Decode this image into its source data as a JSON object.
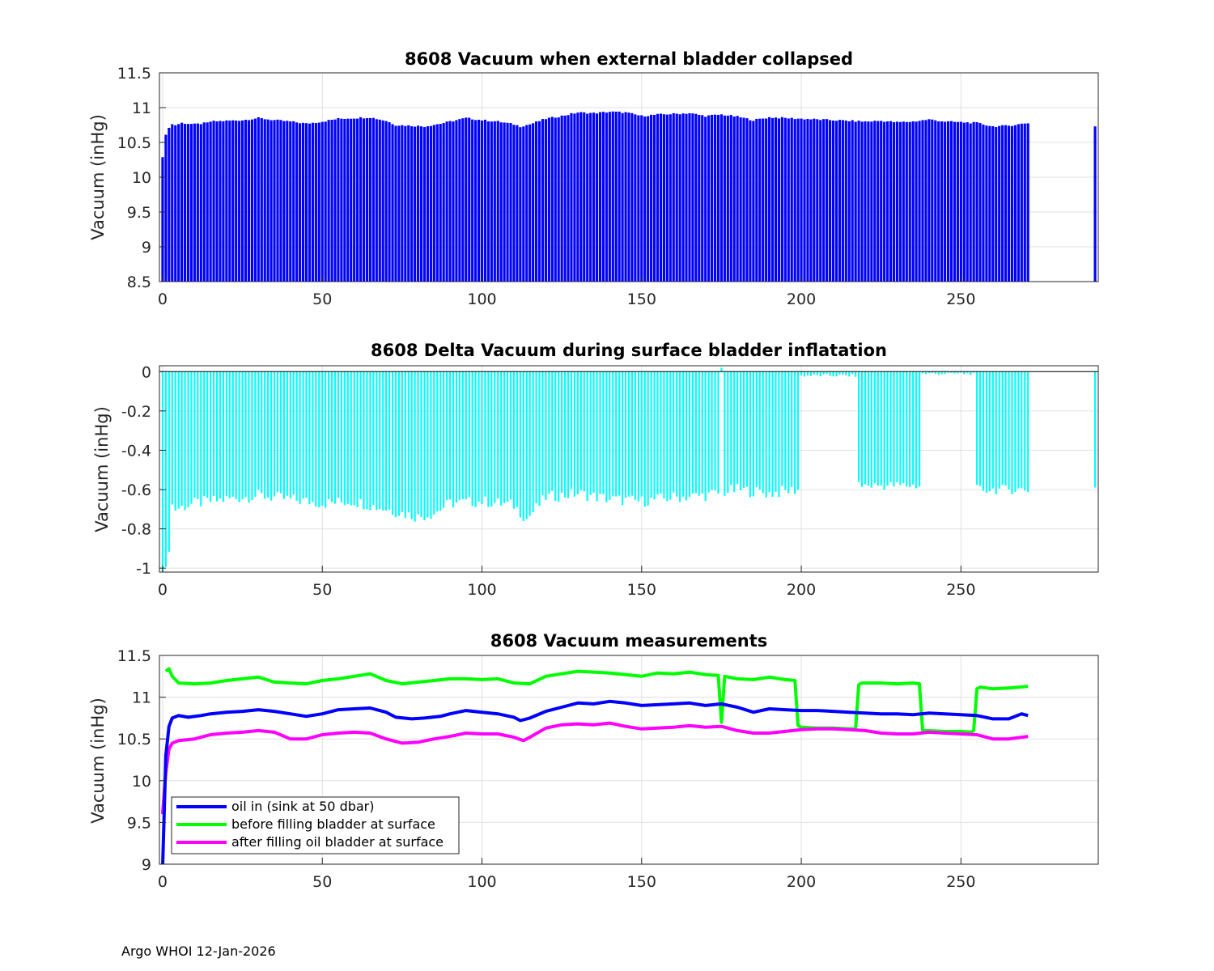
{
  "footer": "Argo WHOI 12-Jan-2026",
  "chart_data": [
    {
      "type": "bar",
      "title": "8608 Vacuum when external bladder collapsed",
      "ylabel": "Vacuum (inHg)",
      "xlabel": "",
      "xlim": [
        -1,
        293
      ],
      "ylim": [
        8.5,
        11.5
      ],
      "xticks": [
        0,
        50,
        100,
        150,
        200,
        250
      ],
      "yticks": [
        8.5,
        9,
        9.5,
        10,
        10.5,
        11,
        11.5
      ],
      "ytick_labels": [
        "8.5",
        "9",
        "9.5",
        "10",
        "10.5",
        "11",
        "11.5"
      ],
      "grid": true,
      "color": "#0000ff",
      "x_range": [
        0,
        271
      ],
      "extra_points": [
        {
          "x": 292,
          "y": 10.73
        }
      ],
      "anchors": {
        "x": [
          0,
          1,
          2,
          3,
          4,
          6,
          10,
          14,
          15,
          20,
          25,
          30,
          35,
          40,
          45,
          50,
          55,
          60,
          65,
          70,
          73,
          78,
          82,
          87,
          90,
          95,
          100,
          105,
          110,
          112,
          115,
          120,
          125,
          130,
          135,
          140,
          145,
          150,
          155,
          160,
          165,
          170,
          175,
          180,
          185,
          190,
          195,
          200,
          205,
          210,
          215,
          220,
          225,
          230,
          235,
          240,
          245,
          250,
          255,
          260,
          265,
          271
        ],
        "y": [
          10.3,
          10.6,
          10.72,
          10.76,
          10.75,
          10.78,
          10.76,
          10.78,
          10.8,
          10.81,
          10.82,
          10.85,
          10.82,
          10.8,
          10.77,
          10.8,
          10.84,
          10.85,
          10.86,
          10.81,
          10.75,
          10.74,
          10.73,
          10.77,
          10.8,
          10.85,
          10.82,
          10.8,
          10.76,
          10.73,
          10.76,
          10.84,
          10.88,
          10.93,
          10.92,
          10.94,
          10.93,
          10.88,
          10.9,
          10.91,
          10.92,
          10.88,
          10.9,
          10.87,
          10.82,
          10.86,
          10.85,
          10.84,
          10.83,
          10.82,
          10.81,
          10.8,
          10.81,
          10.79,
          10.8,
          10.83,
          10.8,
          10.79,
          10.78,
          10.73,
          10.74,
          10.78
        ]
      }
    },
    {
      "type": "bar",
      "title": "8608 Delta Vacuum during surface bladder inflatation",
      "ylabel": "Vacuum (inHg)",
      "xlabel": "",
      "xlim": [
        -1,
        293
      ],
      "ylim": [
        -1.02,
        0.03
      ],
      "xticks": [
        0,
        50,
        100,
        150,
        200,
        250
      ],
      "yticks": [
        -1,
        -0.8,
        -0.6,
        -0.4,
        -0.2,
        0
      ],
      "ytick_labels": [
        "-1",
        "-0.8",
        "-0.6",
        "-0.4",
        "-0.2",
        "0"
      ],
      "grid": true,
      "color": "#00ffff",
      "x_range": [
        0,
        271
      ],
      "segments": [
        {
          "from": 0,
          "to": 199,
          "level": -0.66
        },
        {
          "from": 200,
          "to": 217,
          "level": -0.02
        },
        {
          "from": 218,
          "to": 237,
          "level": -0.58
        },
        {
          "from": 238,
          "to": 254,
          "level": -0.01
        },
        {
          "from": 255,
          "to": 271,
          "level": -0.6
        }
      ],
      "anchors": {
        "x": [
          0,
          1,
          2,
          3,
          4,
          10,
          20,
          30,
          40,
          50,
          60,
          70,
          80,
          85,
          90,
          100,
          110,
          114,
          120,
          130,
          140,
          150,
          160,
          170,
          174,
          180,
          190,
          199
        ],
        "y": [
          -1.02,
          -1.02,
          -0.89,
          -0.68,
          -0.7,
          -0.67,
          -0.65,
          -0.63,
          -0.65,
          -0.67,
          -0.66,
          -0.7,
          -0.74,
          -0.72,
          -0.67,
          -0.66,
          -0.68,
          -0.75,
          -0.64,
          -0.62,
          -0.65,
          -0.66,
          -0.64,
          -0.63,
          -0.62,
          -0.6,
          -0.62,
          -0.6
        ]
      }
    },
    {
      "type": "line",
      "title": "8608 Vacuum measurements",
      "ylabel": "Vacuum (inHg)",
      "xlabel": "",
      "xlim": [
        -1,
        293
      ],
      "ylim": [
        9,
        11.5
      ],
      "xticks": [
        0,
        50,
        100,
        150,
        200,
        250
      ],
      "yticks": [
        9,
        9.5,
        10,
        10.5,
        11,
        11.5
      ],
      "ytick_labels": [
        "9",
        "9.5",
        "10",
        "10.5",
        "11",
        "11.5"
      ],
      "grid": true,
      "legend_position": "lower-left",
      "series": [
        {
          "name": "oil in (sink at 50 dbar)",
          "color": "#0000ff",
          "x": [
            0,
            1,
            2,
            3,
            5,
            8,
            12,
            15,
            20,
            25,
            30,
            35,
            40,
            45,
            50,
            55,
            60,
            65,
            70,
            73,
            78,
            82,
            87,
            90,
            95,
            100,
            105,
            110,
            112,
            115,
            120,
            125,
            130,
            135,
            140,
            145,
            150,
            155,
            160,
            165,
            170,
            175,
            180,
            185,
            190,
            195,
            200,
            205,
            210,
            215,
            220,
            225,
            230,
            235,
            240,
            245,
            250,
            255,
            260,
            265,
            269,
            271
          ],
          "y": [
            8.95,
            10.3,
            10.65,
            10.75,
            10.78,
            10.76,
            10.78,
            10.8,
            10.82,
            10.83,
            10.85,
            10.83,
            10.8,
            10.77,
            10.8,
            10.85,
            10.86,
            10.87,
            10.82,
            10.76,
            10.74,
            10.75,
            10.77,
            10.8,
            10.84,
            10.82,
            10.8,
            10.76,
            10.72,
            10.75,
            10.83,
            10.88,
            10.93,
            10.92,
            10.95,
            10.93,
            10.9,
            10.91,
            10.92,
            10.93,
            10.9,
            10.92,
            10.88,
            10.82,
            10.86,
            10.85,
            10.84,
            10.84,
            10.83,
            10.82,
            10.81,
            10.8,
            10.8,
            10.79,
            10.81,
            10.8,
            10.79,
            10.78,
            10.74,
            10.74,
            10.8,
            10.78
          ]
        },
        {
          "name": "before filling bladder at surface",
          "color": "#00ff00",
          "x": [
            1,
            2,
            3,
            5,
            10,
            15,
            20,
            25,
            30,
            35,
            40,
            45,
            50,
            55,
            60,
            65,
            70,
            75,
            80,
            85,
            90,
            95,
            100,
            105,
            110,
            115,
            120,
            125,
            130,
            135,
            140,
            145,
            150,
            155,
            160,
            165,
            170,
            174,
            175,
            176,
            180,
            185,
            190,
            195,
            198,
            199,
            200,
            205,
            210,
            215,
            217,
            218,
            219,
            225,
            230,
            235,
            237,
            238,
            239,
            245,
            250,
            253,
            254,
            255,
            256,
            260,
            265,
            271
          ],
          "y": [
            11.31,
            11.34,
            11.25,
            11.17,
            11.16,
            11.17,
            11.2,
            11.22,
            11.24,
            11.18,
            11.17,
            11.16,
            11.2,
            11.22,
            11.25,
            11.28,
            11.2,
            11.16,
            11.18,
            11.2,
            11.22,
            11.22,
            11.21,
            11.22,
            11.17,
            11.16,
            11.25,
            11.28,
            11.31,
            11.3,
            11.29,
            11.27,
            11.25,
            11.29,
            11.28,
            11.3,
            11.27,
            11.26,
            10.7,
            11.25,
            11.22,
            11.21,
            11.24,
            11.21,
            11.2,
            10.66,
            10.64,
            10.63,
            10.63,
            10.62,
            10.62,
            11.15,
            11.17,
            11.17,
            11.16,
            11.17,
            11.16,
            10.6,
            10.6,
            10.59,
            10.59,
            10.58,
            10.6,
            11.1,
            11.12,
            11.1,
            11.11,
            11.13
          ]
        },
        {
          "name": "after filling oil bladder at surface",
          "color": "#ff00ff",
          "x": [
            0,
            1,
            2,
            3,
            5,
            10,
            15,
            20,
            25,
            30,
            35,
            40,
            45,
            50,
            55,
            60,
            65,
            70,
            75,
            80,
            85,
            90,
            95,
            100,
            105,
            110,
            113,
            115,
            120,
            125,
            130,
            135,
            140,
            145,
            150,
            155,
            160,
            165,
            170,
            175,
            180,
            185,
            190,
            195,
            200,
            205,
            210,
            215,
            220,
            225,
            230,
            235,
            240,
            245,
            250,
            255,
            260,
            265,
            271
          ],
          "y": [
            9.6,
            10.1,
            10.38,
            10.45,
            10.48,
            10.5,
            10.55,
            10.57,
            10.58,
            10.6,
            10.58,
            10.5,
            10.5,
            10.55,
            10.57,
            10.58,
            10.57,
            10.5,
            10.45,
            10.46,
            10.5,
            10.53,
            10.57,
            10.56,
            10.56,
            10.52,
            10.48,
            10.52,
            10.63,
            10.67,
            10.68,
            10.67,
            10.69,
            10.65,
            10.62,
            10.63,
            10.64,
            10.66,
            10.64,
            10.65,
            10.6,
            10.57,
            10.57,
            10.59,
            10.61,
            10.62,
            10.62,
            10.61,
            10.6,
            10.57,
            10.56,
            10.56,
            10.58,
            10.57,
            10.56,
            10.55,
            10.5,
            10.5,
            10.53
          ]
        }
      ]
    }
  ]
}
